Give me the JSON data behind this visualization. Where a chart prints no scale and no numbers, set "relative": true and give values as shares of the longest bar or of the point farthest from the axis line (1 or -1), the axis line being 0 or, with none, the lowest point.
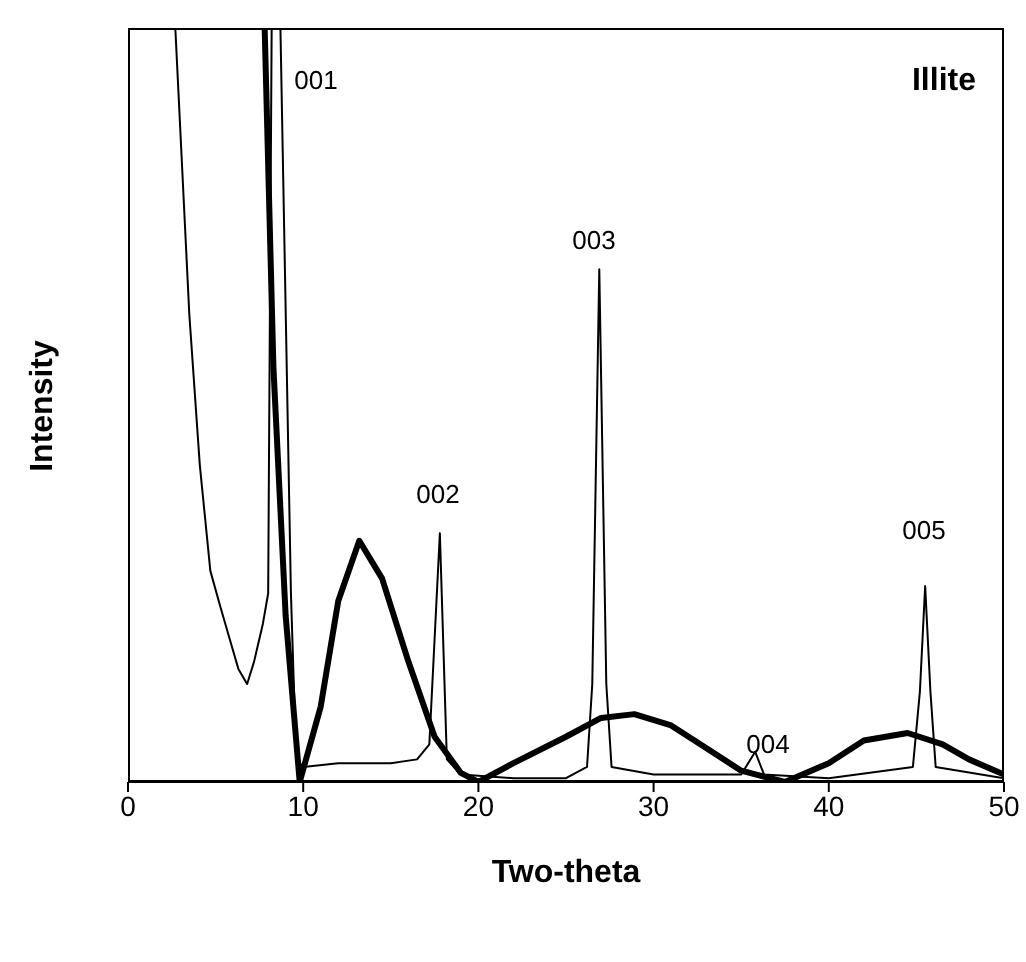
{
  "chart_data": {
    "type": "line",
    "title": "Illite",
    "xlabel": "Two-theta",
    "ylabel": "Intensity",
    "relative": true,
    "xlim": [
      0,
      50
    ],
    "xticks": [
      0,
      10,
      20,
      30,
      40,
      50
    ],
    "series": [
      {
        "color": "#000000",
        "x": [
          2.7,
          3.5,
          4.1,
          4.7,
          5.3,
          5.8,
          6.3,
          6.8,
          7.2,
          7.7,
          8.0,
          8.2,
          8.7,
          9.3,
          9.6,
          10,
          12,
          15,
          16.5,
          17.2,
          17.8,
          18.2,
          19,
          22,
          25,
          26.2,
          26.5,
          26.9,
          27.3,
          27.6,
          30,
          35,
          35.8,
          36.3,
          40,
          44.8,
          45.2,
          45.5,
          45.8,
          46.1,
          50
        ],
        "values": [
          1,
          0.62,
          0.42,
          0.28,
          0.23,
          0.19,
          0.15,
          0.13,
          0.16,
          0.21,
          0.25,
          1,
          1,
          0.25,
          0.03,
          0.02,
          0.025,
          0.025,
          0.03,
          0.05,
          0.33,
          0.03,
          0.01,
          0.005,
          0.005,
          0.02,
          0.13,
          0.68,
          0.13,
          0.02,
          0.01,
          0.01,
          0.04,
          0.01,
          0.005,
          0.02,
          0.12,
          0.26,
          0.12,
          0.02,
          0.005
        ]
      },
      {
        "color": "#000000",
        "x": [
          7.8,
          8.3,
          9,
          9.8,
          11,
          12,
          13.2,
          14.5,
          16,
          17.5,
          19,
          20,
          22,
          25,
          27,
          28.9,
          31,
          33,
          35,
          37.5,
          40,
          42,
          44.5,
          46.5,
          48,
          50
        ],
        "values": [
          1,
          0.55,
          0.22,
          0,
          0.1,
          0.24,
          0.32,
          0.27,
          0.16,
          0.06,
          0.012,
          0,
          0.025,
          0.06,
          0.085,
          0.09,
          0.075,
          0.045,
          0.015,
          0,
          0.025,
          0.055,
          0.065,
          0.05,
          0.03,
          0.01
        ]
      }
    ],
    "annotations": [
      "001",
      "002",
      "003",
      "004",
      "005"
    ]
  }
}
